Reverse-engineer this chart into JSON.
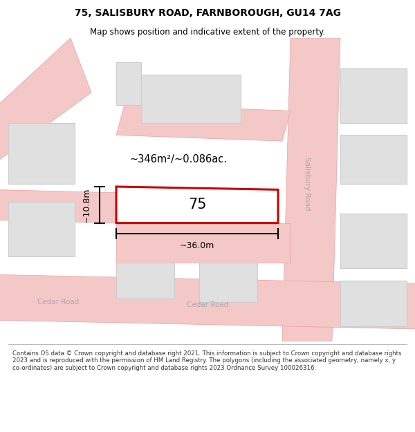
{
  "title": "75, SALISBURY ROAD, FARNBOROUGH, GU14 7AG",
  "subtitle": "Map shows position and indicative extent of the property.",
  "footer": "Contains OS data © Crown copyright and database right 2021. This information is subject to Crown copyright and database rights 2023 and is reproduced with the permission of HM Land Registry. The polygons (including the associated geometry, namely x, y co-ordinates) are subject to Crown copyright and database rights 2023 Ordnance Survey 100026316.",
  "bg_color": "#ffffff",
  "map_bg": "#f0ebe8",
  "road_color": "#f5c8c8",
  "road_outline": "#e8a0a0",
  "block_fill": "#e0e0e0",
  "block_outline": "#cccccc",
  "subject_fill": "#ffffff",
  "subject_outline": "#cc0000",
  "area_text": "~346m²/~0.086ac.",
  "number_text": "75",
  "width_label": "~36.0m",
  "height_label": "~10.8m",
  "salisbury_road_label": "Salisbury Road",
  "cedar_road_label": "Cedar Road",
  "road_label_color": "#aaaaaa"
}
